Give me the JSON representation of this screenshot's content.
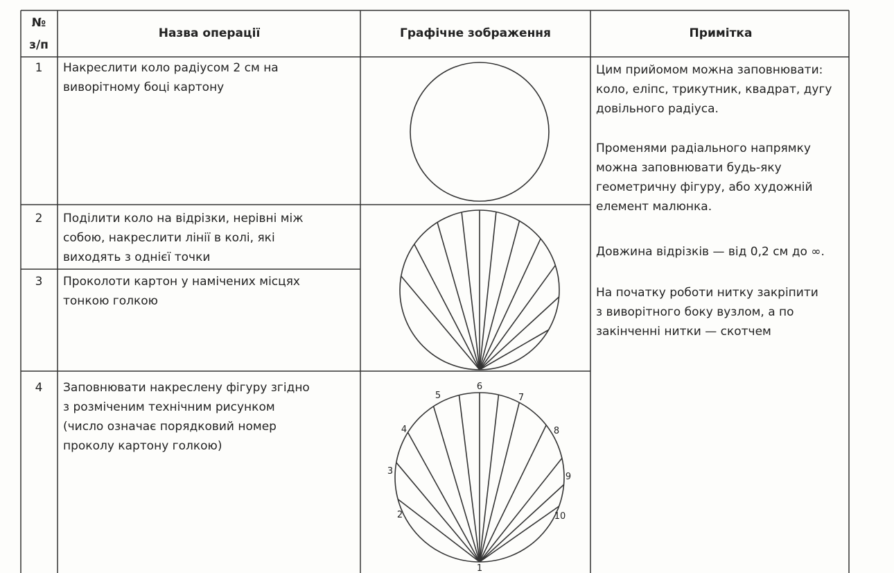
{
  "header": {
    "number": [
      "№",
      "з/п"
    ],
    "name": "Назва операції",
    "image": "Графічне зображення",
    "note": "Примітка"
  },
  "rows": [
    {
      "number": "1",
      "name": [
        "Накреслити коло радіусом 2 см на",
        "виворітному боці картону"
      ]
    },
    {
      "number": "2",
      "name": [
        "Поділити коло на відрізки, нерівні між",
        "собою, накреслити лінії в колі, які",
        "виходять з однієї точки"
      ]
    },
    {
      "number": "3",
      "name": [
        "Проколоти картон у намічених місцях",
        "тонкою голкою"
      ]
    },
    {
      "number": "4",
      "name": [
        "Заповнювати накреслену фігуру згідно",
        "з розміченим технічним рисунком",
        "(число означає порядковий номер",
        "проколу картону голкою)"
      ]
    }
  ],
  "note": [
    [
      "Цим прийомом можна заповнювати:",
      "коло, еліпс, трикутник, квадрат, дугу",
      "довільного радіуса."
    ],
    [
      "Променями радіального напрямку",
      "можна заповнювати будь-яку",
      "геометричну фігуру, або художній",
      "елемент малюнка."
    ],
    [
      "Довжина відрізків — від 0,2 см до ∞."
    ],
    [
      "На початку роботи нитку закріпити",
      "з виворітного боку вузлом, а по",
      "закінченні нитки — скотчем"
    ]
  ],
  "figure_labels": [
    "1",
    "2",
    "3",
    "4",
    "5",
    "6",
    "7",
    "8",
    "9",
    "10"
  ]
}
